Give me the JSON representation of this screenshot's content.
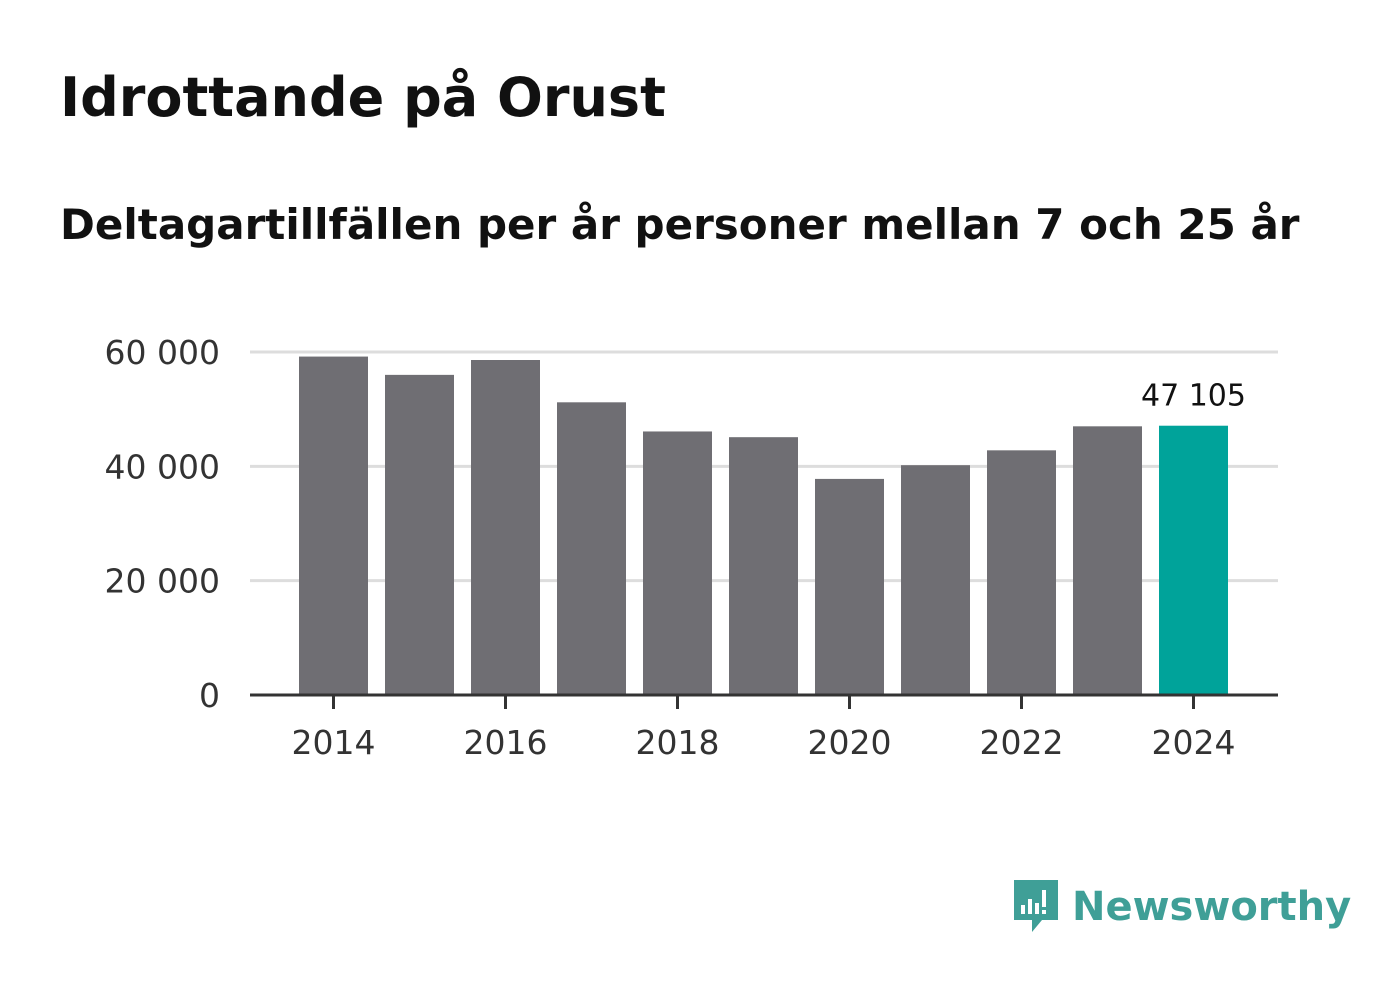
{
  "title": "Idrottande på Orust",
  "subtitle": "Deltagartillfällen per år personer mellan 7 och 25 år",
  "brand": {
    "name": "Newsworthy",
    "color": "#3f9f97",
    "icon": "newsworthy-logo-icon"
  },
  "colors": {
    "bar": "#6f6e73",
    "highlight": "#00a39a",
    "grid": "#dddddd",
    "axis": "#333333"
  },
  "chart_data": {
    "type": "bar",
    "title": "Idrottande på Orust",
    "subtitle": "Deltagartillfällen per år personer mellan 7 och 25 år",
    "xlabel": "",
    "ylabel": "",
    "categories": [
      "2014",
      "2015",
      "2016",
      "2017",
      "2018",
      "2019",
      "2020",
      "2021",
      "2022",
      "2023",
      "2024"
    ],
    "values": [
      59200,
      56000,
      58600,
      51200,
      46100,
      45100,
      37800,
      40200,
      42800,
      47000,
      47105
    ],
    "highlight_index": 10,
    "ylim": [
      0,
      60000
    ],
    "yticks": [
      0,
      20000,
      40000,
      60000
    ],
    "ytick_labels": [
      "0",
      "20 000",
      "40 000",
      "60 000"
    ],
    "xtick_labels": [
      "2014",
      "2016",
      "2018",
      "2020",
      "2022",
      "2024"
    ],
    "annotation": "47 105",
    "grid": true,
    "legend": "none"
  }
}
